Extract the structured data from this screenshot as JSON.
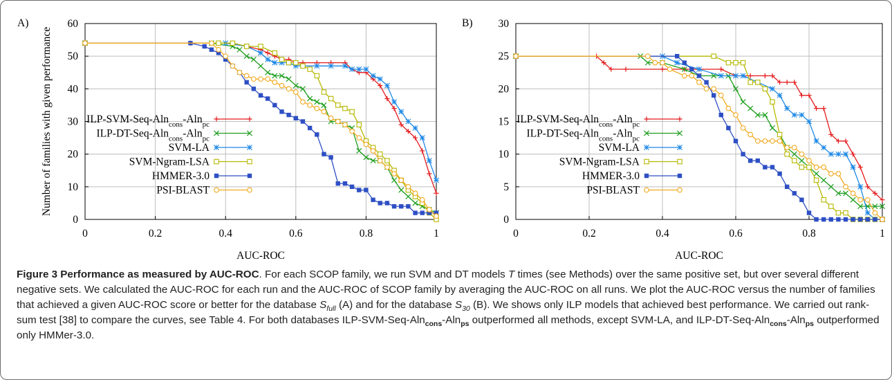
{
  "figure": {
    "caption": {
      "title": "Figure 3 Performance as measured by AUC-ROC",
      "text_1": ". For each SCOP family, we run SVM and DT models ",
      "text_T": "T",
      "text_2": " times (see Methods) over the same positive set, but over several different negative sets. We calculated the AUC-ROC for each run and the AUC-ROC of SCOP family by averaging the AUC-ROC on all runs. We plot the AUC-ROC versus the number of families that achieved a given AUC-ROC score or better for the database ",
      "s_full_S": "S",
      "s_full_sub": "full",
      "text_3": " (A) and for the database ",
      "s30_S": "S",
      "s30_sub": "30",
      "text_4": " (B). We shows only ILP models that achieved best performance. We carried out rank-sum test [38] to compare the curves, see Table 4. For both databases ILP-SVM-Seq-Aln",
      "cons_1": "cons",
      "text_5": "-Aln",
      "ps_1": "ps",
      "text_6": " outperformed all methods, except SVM-LA, and ILP-DT-Seq-Aln",
      "cons_2": "cons",
      "text_7": "-Aln",
      "ps_2": "ps",
      "text_8": " outperformed only HMMer-3.0."
    }
  },
  "chart_data": [
    {
      "type": "line",
      "panel_label": "A)",
      "xlabel": "AUC-ROC",
      "ylabel": "Number of families with given performance",
      "xlim": [
        0,
        1
      ],
      "ylim": [
        0,
        60
      ],
      "xticks": [
        0,
        0.2,
        0.4,
        0.6,
        0.8,
        1
      ],
      "yticks": [
        0,
        10,
        20,
        30,
        40,
        50,
        60
      ],
      "grid": true,
      "legend_position": "left",
      "series": [
        {
          "name": "ILP-SVM-Seq-Aln_cons-Aln_pc",
          "color": "#e41a1c",
          "marker": "plus",
          "x": [
            0.0,
            0.3,
            0.42,
            0.46,
            0.5,
            0.52,
            0.54,
            0.56,
            0.58,
            0.6,
            0.62,
            0.66,
            0.7,
            0.74,
            0.76,
            0.78,
            0.8,
            0.82,
            0.84,
            0.86,
            0.88,
            0.9,
            0.92,
            0.94,
            0.96,
            0.98,
            1.0
          ],
          "y": [
            54,
            54,
            54,
            53,
            52,
            51,
            50,
            49,
            49,
            48,
            48,
            48,
            48,
            48,
            46,
            45,
            45,
            43,
            41,
            37,
            34,
            29,
            27,
            25,
            21,
            14,
            8
          ]
        },
        {
          "name": "ILP-DT-Seq-Aln_cons-Aln_pc",
          "color": "#1f9e1f",
          "marker": "cross",
          "x": [
            0.0,
            0.36,
            0.42,
            0.44,
            0.46,
            0.48,
            0.5,
            0.52,
            0.54,
            0.56,
            0.58,
            0.6,
            0.62,
            0.64,
            0.66,
            0.68,
            0.7,
            0.72,
            0.74,
            0.76,
            0.78,
            0.8,
            0.82,
            0.84,
            0.86,
            0.88,
            0.9,
            0.92,
            0.94,
            0.96,
            0.98,
            1.0
          ],
          "y": [
            54,
            54,
            53,
            52,
            50,
            49,
            47,
            45,
            44,
            44,
            43,
            41,
            40,
            37,
            36,
            35,
            30,
            30,
            29,
            28,
            21,
            19,
            18,
            18,
            16,
            12,
            9,
            7,
            5,
            4,
            3,
            2
          ]
        },
        {
          "name": "SVM-LA",
          "color": "#1e88e5",
          "marker": "star",
          "x": [
            0.0,
            0.4,
            0.46,
            0.5,
            0.52,
            0.54,
            0.56,
            0.58,
            0.6,
            0.62,
            0.66,
            0.7,
            0.74,
            0.76,
            0.78,
            0.8,
            0.82,
            0.84,
            0.86,
            0.88,
            0.9,
            0.92,
            0.94,
            0.96,
            0.98,
            1.0
          ],
          "y": [
            54,
            54,
            53,
            51,
            49,
            48,
            48,
            48,
            47,
            47,
            47,
            47,
            47,
            46,
            46,
            46,
            44,
            43,
            41,
            36,
            33,
            30,
            28,
            25,
            18,
            12
          ]
        },
        {
          "name": "SVM-Ngram-LSA",
          "color": "#b5b800",
          "marker": "square",
          "x": [
            0.0,
            0.38,
            0.42,
            0.46,
            0.5,
            0.54,
            0.56,
            0.58,
            0.6,
            0.62,
            0.64,
            0.66,
            0.68,
            0.7,
            0.72,
            0.74,
            0.76,
            0.78,
            0.8,
            0.82,
            0.84,
            0.86,
            0.88,
            0.9,
            0.92,
            0.94,
            0.96,
            0.98,
            1.0
          ],
          "y": [
            54,
            54,
            54,
            53,
            53,
            51,
            49,
            48,
            48,
            47,
            46,
            44,
            39,
            37,
            35,
            34,
            33,
            29,
            24,
            22,
            20,
            18,
            15,
            12,
            9,
            7,
            5,
            2,
            0
          ]
        },
        {
          "name": "HMMER-3.0",
          "color": "#2e4fc4",
          "marker": "filled-square",
          "x": [
            0.0,
            0.3,
            0.34,
            0.36,
            0.38,
            0.4,
            0.42,
            0.44,
            0.46,
            0.48,
            0.5,
            0.52,
            0.54,
            0.56,
            0.58,
            0.6,
            0.62,
            0.64,
            0.66,
            0.68,
            0.7,
            0.72,
            0.74,
            0.76,
            0.78,
            0.8,
            0.82,
            0.84,
            0.86,
            0.88,
            0.9,
            0.92,
            0.94,
            0.96,
            0.98,
            1.0
          ],
          "y": [
            54,
            54,
            53,
            52,
            51,
            49,
            47,
            45,
            42,
            40,
            38,
            37,
            35,
            33,
            32,
            31,
            30,
            28,
            26,
            20,
            19,
            11,
            11,
            10,
            9,
            9,
            6,
            5,
            5,
            4,
            4,
            4,
            2,
            2,
            2,
            2
          ]
        },
        {
          "name": "PSI-BLAST",
          "color": "#f2a91e",
          "marker": "circle",
          "x": [
            0.0,
            0.36,
            0.38,
            0.4,
            0.42,
            0.44,
            0.46,
            0.48,
            0.5,
            0.52,
            0.54,
            0.56,
            0.58,
            0.6,
            0.62,
            0.64,
            0.66,
            0.68,
            0.7,
            0.72,
            0.74,
            0.76,
            0.78,
            0.8,
            0.82,
            0.84,
            0.86,
            0.88,
            0.9,
            0.92,
            0.94,
            0.96,
            0.98,
            1.0
          ],
          "y": [
            54,
            54,
            52,
            50,
            47,
            45,
            44,
            43,
            43,
            43,
            42,
            41,
            40,
            39,
            36,
            35,
            34,
            33,
            31,
            30,
            29,
            27,
            25,
            23,
            21,
            18,
            16,
            14,
            12,
            10,
            8,
            6,
            3,
            1
          ]
        }
      ]
    },
    {
      "type": "line",
      "panel_label": "B)",
      "xlabel": "AUC-ROC",
      "ylabel": "",
      "xlim": [
        0,
        1
      ],
      "ylim": [
        0,
        30
      ],
      "xticks": [
        0,
        0.2,
        0.4,
        0.6,
        0.8,
        1
      ],
      "yticks": [
        0,
        5,
        10,
        15,
        20,
        25,
        30
      ],
      "grid": true,
      "legend_position": "left",
      "series": [
        {
          "name": "ILP-SVM-Seq-Aln_cons-Aln_pc",
          "color": "#e41a1c",
          "marker": "plus",
          "x": [
            0.0,
            0.22,
            0.24,
            0.26,
            0.3,
            0.4,
            0.46,
            0.5,
            0.56,
            0.6,
            0.64,
            0.68,
            0.7,
            0.72,
            0.74,
            0.76,
            0.78,
            0.8,
            0.82,
            0.84,
            0.86,
            0.88,
            0.9,
            0.92,
            0.94,
            0.96,
            0.98,
            1.0
          ],
          "y": [
            25,
            25,
            24,
            23,
            23,
            23,
            23,
            23,
            23,
            22,
            22,
            22,
            22,
            21,
            21,
            21,
            19,
            19,
            17,
            17,
            13,
            12,
            12,
            10,
            8,
            5,
            4,
            3
          ]
        },
        {
          "name": "ILP-DT-Seq-Aln_cons-Aln_pc",
          "color": "#1f9e1f",
          "marker": "cross",
          "x": [
            0.0,
            0.34,
            0.36,
            0.4,
            0.46,
            0.5,
            0.54,
            0.58,
            0.6,
            0.62,
            0.64,
            0.66,
            0.68,
            0.7,
            0.72,
            0.74,
            0.76,
            0.78,
            0.8,
            0.82,
            0.84,
            0.86,
            0.88,
            0.9,
            0.92,
            0.94,
            0.96,
            0.98,
            1.0
          ],
          "y": [
            25,
            25,
            24,
            24,
            23,
            22,
            22,
            22,
            20,
            18,
            17,
            16,
            16,
            14,
            13,
            11,
            10,
            9,
            8,
            7,
            6,
            5,
            4,
            4,
            3,
            2,
            2,
            2,
            2
          ]
        },
        {
          "name": "SVM-LA",
          "color": "#1e88e5",
          "marker": "star",
          "x": [
            0.0,
            0.4,
            0.44,
            0.5,
            0.56,
            0.6,
            0.62,
            0.66,
            0.7,
            0.72,
            0.74,
            0.76,
            0.78,
            0.8,
            0.82,
            0.84,
            0.86,
            0.88,
            0.9,
            0.92,
            0.94,
            0.96,
            0.98,
            1.0
          ],
          "y": [
            25,
            25,
            24,
            23,
            22,
            22,
            22,
            21,
            20,
            19,
            17,
            16,
            16,
            15,
            12,
            11,
            10,
            10,
            10,
            8,
            5,
            1,
            0,
            0
          ]
        },
        {
          "name": "SVM-Ngram-LSA",
          "color": "#b5b800",
          "marker": "square",
          "x": [
            0.0,
            0.54,
            0.58,
            0.6,
            0.62,
            0.64,
            0.66,
            0.68,
            0.7,
            0.72,
            0.74,
            0.76,
            0.78,
            0.8,
            0.82,
            0.84,
            0.86,
            0.88,
            0.9,
            0.92,
            0.94,
            0.96,
            0.98,
            1.0
          ],
          "y": [
            25,
            25,
            24,
            24,
            24,
            21,
            21,
            20,
            18,
            13,
            10,
            9,
            8,
            8,
            6,
            3,
            2,
            1,
            1,
            0,
            0,
            0,
            0,
            0
          ]
        },
        {
          "name": "HMMER-3.0",
          "color": "#2e4fc4",
          "marker": "filled-square",
          "x": [
            0.0,
            0.44,
            0.46,
            0.48,
            0.5,
            0.52,
            0.54,
            0.56,
            0.58,
            0.6,
            0.62,
            0.64,
            0.66,
            0.68,
            0.7,
            0.72,
            0.74,
            0.76,
            0.78,
            0.8,
            0.82,
            0.84,
            0.86,
            0.88,
            0.9,
            0.92,
            0.94,
            0.96,
            0.98,
            1.0
          ],
          "y": [
            25,
            25,
            24,
            23,
            22,
            21,
            19,
            16,
            14,
            12,
            10,
            9,
            9,
            8,
            8,
            7,
            5,
            4,
            3,
            1,
            0,
            0,
            0,
            0,
            0,
            0,
            0,
            0,
            0,
            0
          ]
        },
        {
          "name": "PSI-BLAST",
          "color": "#f2a91e",
          "marker": "circle",
          "x": [
            0.0,
            0.36,
            0.38,
            0.4,
            0.42,
            0.46,
            0.48,
            0.5,
            0.52,
            0.54,
            0.56,
            0.58,
            0.6,
            0.62,
            0.64,
            0.66,
            0.68,
            0.7,
            0.72,
            0.74,
            0.76,
            0.78,
            0.8,
            0.82,
            0.84,
            0.86,
            0.88,
            0.9,
            0.92,
            0.94,
            0.96,
            0.98,
            1.0
          ],
          "y": [
            25,
            25,
            24,
            24,
            23,
            22,
            22,
            21,
            20,
            20,
            19,
            17,
            16,
            14,
            13,
            12,
            12,
            12,
            12,
            11,
            11,
            10,
            9,
            8,
            8,
            7,
            7,
            5,
            4,
            3,
            3,
            1,
            0
          ]
        }
      ]
    }
  ]
}
